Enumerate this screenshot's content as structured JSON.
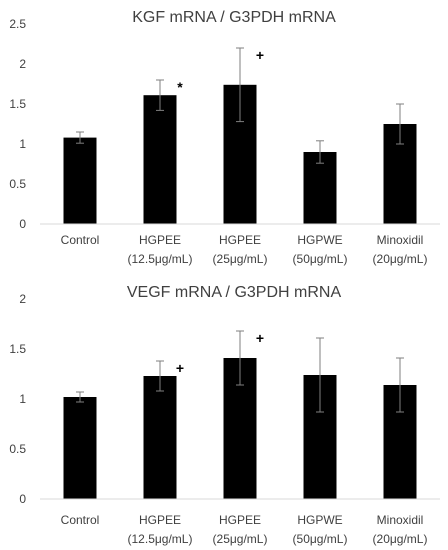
{
  "chart_data": [
    {
      "type": "bar",
      "title": "KGF mRNA / G3PDH mRNA",
      "xlabel": "",
      "ylabel": "",
      "ylim": [
        0,
        2.5
      ],
      "yticks": [
        "0",
        "0.5",
        "1",
        "1.5",
        "2",
        "2.5"
      ],
      "categories": [
        [
          "Control"
        ],
        [
          "HGPEE",
          "(12.5μg/mL)"
        ],
        [
          "HGPEE",
          "(25μg/mL)"
        ],
        [
          "HGPWE",
          "(50μg/mL)"
        ],
        [
          "Minoxidil",
          "(20μg/mL)"
        ]
      ],
      "values": [
        1.08,
        1.61,
        1.74,
        0.9,
        1.25
      ],
      "errors": [
        0.07,
        0.19,
        0.46,
        0.14,
        0.25
      ],
      "annotations": [
        "",
        "*",
        "+",
        "",
        ""
      ],
      "bar_color": "#000000",
      "grid": false
    },
    {
      "type": "bar",
      "title": "VEGF mRNA / G3PDH mRNA",
      "xlabel": "",
      "ylabel": "",
      "ylim": [
        0,
        2
      ],
      "yticks": [
        "0",
        "0.5",
        "1",
        "1.5",
        "2"
      ],
      "categories": [
        [
          "Control"
        ],
        [
          "HGPEE",
          "(12.5μg/mL)"
        ],
        [
          "HGPEE",
          "(25μg/mL)"
        ],
        [
          "HGPWE",
          "(50μg/mL)"
        ],
        [
          "Minoxidil",
          "(20μg/mL)"
        ]
      ],
      "values": [
        1.02,
        1.23,
        1.41,
        1.24,
        1.14
      ],
      "errors": [
        0.05,
        0.15,
        0.27,
        0.37,
        0.27
      ],
      "annotations": [
        "",
        "+",
        "+",
        "",
        ""
      ],
      "bar_color": "#000000",
      "grid": false
    }
  ]
}
